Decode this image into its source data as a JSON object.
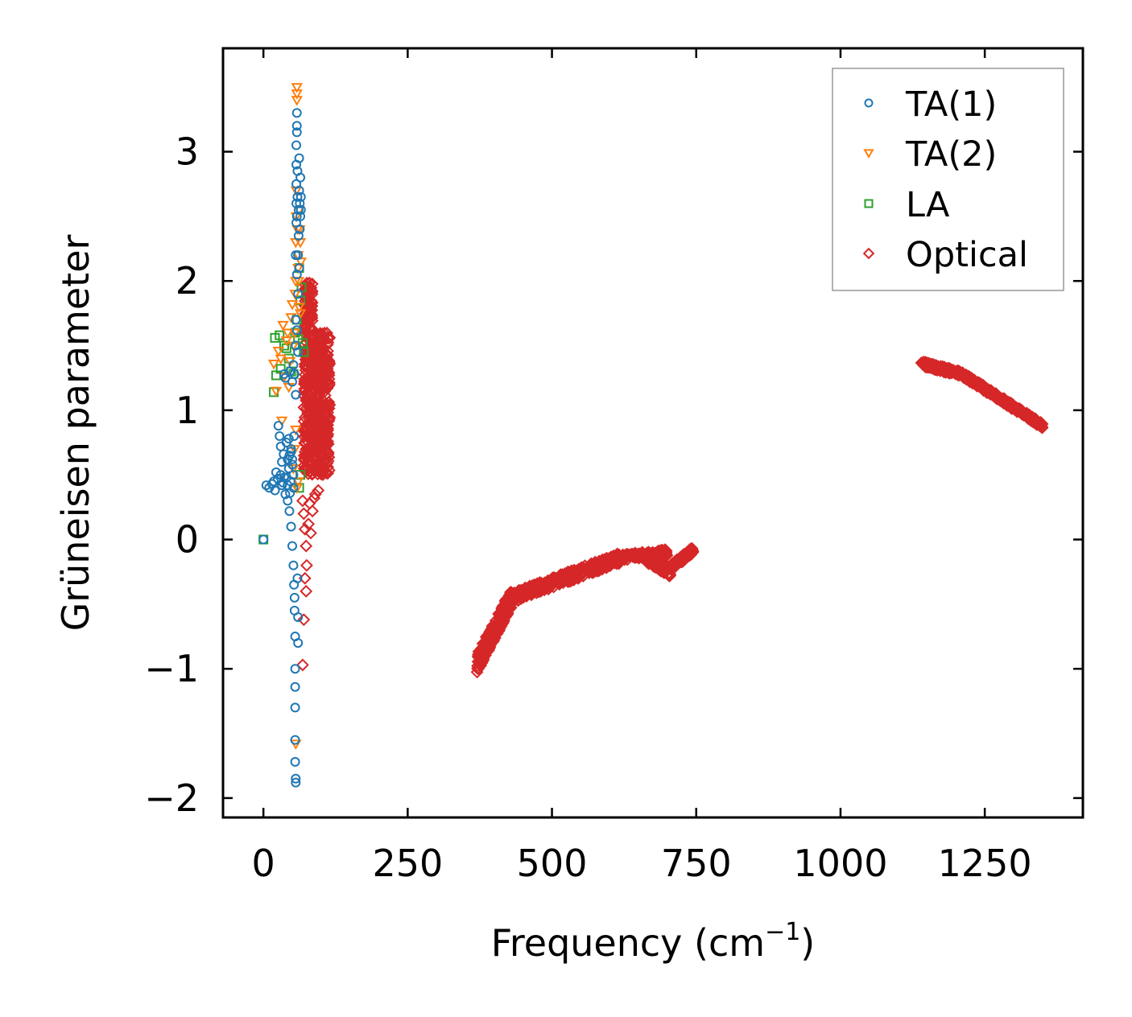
{
  "chart_data": {
    "type": "scatter",
    "xlabel": "Frequency (cm",
    "xlabel_sup": "−1",
    "xlabel_close": ")",
    "ylabel": "Grüneisen parameter",
    "xlim": [
      -70,
      1420
    ],
    "ylim": [
      -2.15,
      3.8
    ],
    "xticks": [
      0,
      250,
      500,
      750,
      1000,
      1250
    ],
    "xtick_labels": [
      "0",
      "250",
      "500",
      "750",
      "1000",
      "1250"
    ],
    "yticks": [
      -2,
      -1,
      0,
      1,
      2,
      3
    ],
    "ytick_labels": [
      "−2",
      "−1",
      "0",
      "1",
      "2",
      "3"
    ],
    "legend_position": "top-right",
    "series": [
      {
        "name": "TA(1)",
        "marker": "circle",
        "color": "#1f77b4",
        "points": [
          [
            0,
            0
          ],
          [
            5,
            0.42
          ],
          [
            10,
            0.4
          ],
          [
            15,
            0.43
          ],
          [
            18,
            0.45
          ],
          [
            20,
            0.38
          ],
          [
            22,
            0.52
          ],
          [
            25,
            0.47
          ],
          [
            26,
            0.88
          ],
          [
            28,
            0.8
          ],
          [
            30,
            0.72
          ],
          [
            30,
            0.5
          ],
          [
            32,
            0.6
          ],
          [
            34,
            0.44
          ],
          [
            35,
            0.66
          ],
          [
            36,
            1.28
          ],
          [
            38,
            0.35
          ],
          [
            38,
            1.25
          ],
          [
            40,
            0.48
          ],
          [
            40,
            0.75
          ],
          [
            42,
            0.62
          ],
          [
            42,
            0.3
          ],
          [
            44,
            0.55
          ],
          [
            45,
            0.65
          ],
          [
            45,
            0.22
          ],
          [
            46,
            1.3
          ],
          [
            47,
            0.45
          ],
          [
            48,
            0.1
          ],
          [
            48,
            0.7
          ],
          [
            50,
            -0.05
          ],
          [
            50,
            0.58
          ],
          [
            50,
            1.22
          ],
          [
            52,
            -0.2
          ],
          [
            52,
            0.5
          ],
          [
            52,
            0.4
          ],
          [
            53,
            -0.35
          ],
          [
            53,
            0.8
          ],
          [
            54,
            -0.45
          ],
          [
            54,
            -0.55
          ],
          [
            55,
            -0.75
          ],
          [
            55,
            -1.0
          ],
          [
            55,
            -1.14
          ],
          [
            55,
            -1.3
          ],
          [
            55,
            -1.55
          ],
          [
            55,
            -1.72
          ],
          [
            56,
            -1.85
          ],
          [
            56,
            -1.88
          ],
          [
            56,
            1.5
          ],
          [
            56,
            1.7
          ],
          [
            56,
            2.2
          ],
          [
            57,
            2.45
          ],
          [
            57,
            2.6
          ],
          [
            57,
            2.75
          ],
          [
            57,
            2.9
          ],
          [
            57,
            3.05
          ],
          [
            58,
            3.15
          ],
          [
            58,
            3.2
          ],
          [
            58,
            3.3
          ],
          [
            58,
            2.5
          ],
          [
            59,
            2.65
          ],
          [
            59,
            2.85
          ],
          [
            59,
            -0.3
          ],
          [
            60,
            -0.6
          ],
          [
            60,
            -0.8
          ],
          [
            60,
            1.9
          ],
          [
            61,
            2.35
          ],
          [
            61,
            2.55
          ],
          [
            62,
            2.7
          ],
          [
            62,
            2.95
          ],
          [
            63,
            2.6
          ],
          [
            63,
            2.4
          ],
          [
            64,
            2.5
          ],
          [
            64,
            2.8
          ],
          [
            65,
            2.65
          ],
          [
            65,
            2.55
          ],
          [
            56,
            1.12
          ],
          [
            54,
            1.28
          ],
          [
            52,
            1.35
          ],
          [
            58,
            1.62
          ],
          [
            60,
            1.45
          ],
          [
            44,
            0.78
          ],
          [
            48,
            0.68
          ],
          [
            50,
            0.62
          ],
          [
            36,
            0.48
          ],
          [
            32,
            0.42
          ],
          [
            42,
            0.42
          ],
          [
            46,
            0.36
          ],
          [
            58,
            2.05
          ],
          [
            60,
            2.2
          ],
          [
            62,
            2.1
          ]
        ]
      },
      {
        "name": "TA(2)",
        "marker": "triangle-down",
        "color": "#ff7f0e",
        "points": [
          [
            18,
            1.36
          ],
          [
            22,
            1.15
          ],
          [
            26,
            1.46
          ],
          [
            30,
            1.4
          ],
          [
            32,
            0.92
          ],
          [
            34,
            1.66
          ],
          [
            36,
            1.26
          ],
          [
            40,
            1.54
          ],
          [
            42,
            1.6
          ],
          [
            44,
            1.18
          ],
          [
            46,
            1.38
          ],
          [
            48,
            1.72
          ],
          [
            50,
            1.82
          ],
          [
            52,
            1.5
          ],
          [
            54,
            1.6
          ],
          [
            55,
            1.9
          ],
          [
            56,
            2.0
          ],
          [
            56,
            2.3
          ],
          [
            57,
            2.5
          ],
          [
            57,
            2.7
          ],
          [
            58,
            3.5
          ],
          [
            58,
            3.45
          ],
          [
            58,
            3.4
          ],
          [
            59,
            2.4
          ],
          [
            60,
            2.2
          ],
          [
            60,
            2.1
          ],
          [
            61,
            2.0
          ],
          [
            62,
            1.8
          ],
          [
            62,
            2.55
          ],
          [
            63,
            2.4
          ],
          [
            64,
            1.75
          ],
          [
            64,
            2.3
          ],
          [
            65,
            2.15
          ],
          [
            56,
            0.85
          ],
          [
            54,
            0.7
          ],
          [
            52,
            0.55
          ],
          [
            56,
            -1.58
          ],
          [
            58,
            0.4
          ],
          [
            60,
            0.45
          ]
        ]
      },
      {
        "name": "LA",
        "marker": "square",
        "color": "#2ca02c",
        "points": [
          [
            0,
            0
          ],
          [
            18,
            1.14
          ],
          [
            20,
            1.56
          ],
          [
            22,
            1.27
          ],
          [
            28,
            1.58
          ],
          [
            30,
            1.32
          ],
          [
            36,
            1.5
          ],
          [
            40,
            1.48
          ],
          [
            44,
            1.4
          ],
          [
            48,
            1.3
          ],
          [
            52,
            1.28
          ],
          [
            55,
            1.6
          ],
          [
            58,
            1.7
          ],
          [
            60,
            1.55
          ],
          [
            62,
            2.1
          ],
          [
            64,
            1.85
          ],
          [
            66,
            1.95
          ],
          [
            68,
            1.52
          ],
          [
            70,
            1.45
          ],
          [
            62,
            0.4
          ],
          [
            64,
            0.5
          ]
        ]
      },
      {
        "name": "Optical",
        "marker": "diamond",
        "color": "#d62728",
        "points": [],
        "clusters": [
          {
            "kind": "band",
            "x0": 70,
            "x1": 115,
            "y_min": 0.5,
            "y_max": 1.6,
            "n": 500
          },
          {
            "kind": "band",
            "x0": 72,
            "x1": 85,
            "y_min": 1.6,
            "y_max": 2.0,
            "n": 80
          },
          {
            "kind": "line",
            "x0": 370,
            "x1": 430,
            "y0": -0.96,
            "y1": -0.45,
            "spread": 0.14,
            "n": 300
          },
          {
            "kind": "line",
            "x0": 430,
            "x1": 620,
            "y0": -0.45,
            "y1": -0.14,
            "spread": 0.08,
            "n": 350
          },
          {
            "kind": "line",
            "x0": 620,
            "x1": 700,
            "y0": -0.14,
            "y1": -0.1,
            "spread": 0.05,
            "n": 120
          },
          {
            "kind": "line",
            "x0": 665,
            "x1": 705,
            "y0": -0.15,
            "y1": -0.25,
            "spread": 0.07,
            "n": 120
          },
          {
            "kind": "line",
            "x0": 705,
            "x1": 745,
            "y0": -0.22,
            "y1": -0.08,
            "spread": 0.05,
            "n": 100
          },
          {
            "kind": "line",
            "x0": 1140,
            "x1": 1210,
            "y0": 1.36,
            "y1": 1.28,
            "spread": 0.04,
            "n": 140
          },
          {
            "kind": "line",
            "x0": 1210,
            "x1": 1350,
            "y0": 1.28,
            "y1": 0.88,
            "spread": 0.04,
            "n": 260
          }
        ],
        "scatter_points": [
          [
            68,
            0.3
          ],
          [
            70,
            0.2
          ],
          [
            72,
            0.08
          ],
          [
            74,
            -0.05
          ],
          [
            72,
            -0.3
          ],
          [
            74,
            -0.4
          ],
          [
            70,
            -0.62
          ],
          [
            68,
            -0.97
          ],
          [
            80,
            0.28
          ],
          [
            85,
            0.22
          ],
          [
            88,
            0.32
          ],
          [
            90,
            0.35
          ],
          [
            95,
            0.38
          ],
          [
            78,
            0.12
          ],
          [
            82,
            0.05
          ],
          [
            75,
            -0.2
          ]
        ]
      }
    ]
  }
}
